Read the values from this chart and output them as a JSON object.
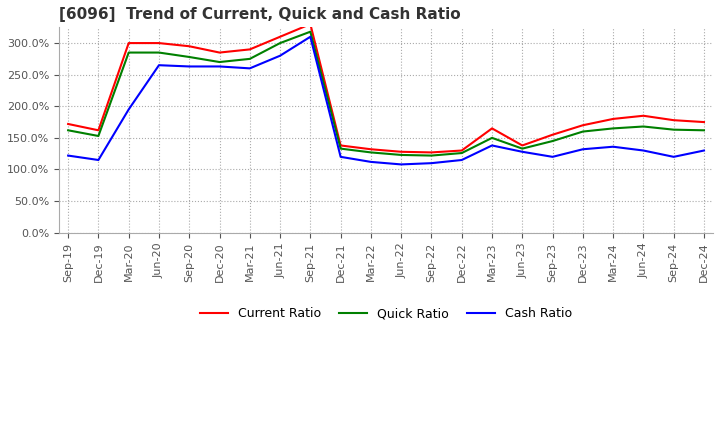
{
  "title": "[6096]  Trend of Current, Quick and Cash Ratio",
  "x_labels": [
    "Sep-19",
    "Dec-19",
    "Mar-20",
    "Jun-20",
    "Sep-20",
    "Dec-20",
    "Mar-21",
    "Jun-21",
    "Sep-21",
    "Dec-21",
    "Mar-22",
    "Jun-22",
    "Sep-22",
    "Dec-22",
    "Mar-23",
    "Jun-23",
    "Sep-23",
    "Dec-23",
    "Mar-24",
    "Jun-24",
    "Sep-24",
    "Dec-24"
  ],
  "current_ratio": [
    172,
    162,
    300,
    300,
    295,
    285,
    290,
    310,
    330,
    138,
    132,
    128,
    127,
    130,
    165,
    138,
    155,
    170,
    180,
    185,
    178,
    175
  ],
  "quick_ratio": [
    162,
    153,
    285,
    285,
    278,
    270,
    275,
    300,
    318,
    133,
    127,
    123,
    122,
    126,
    150,
    133,
    145,
    160,
    165,
    168,
    163,
    162
  ],
  "cash_ratio": [
    122,
    115,
    195,
    265,
    263,
    263,
    260,
    280,
    310,
    120,
    112,
    108,
    110,
    115,
    138,
    128,
    120,
    132,
    136,
    130,
    120,
    130
  ],
  "ylim": [
    0,
    325
  ],
  "yticks": [
    0,
    50,
    100,
    150,
    200,
    250,
    300
  ],
  "current_color": "#ff0000",
  "quick_color": "#008000",
  "cash_color": "#0000ff",
  "background_color": "#ffffff",
  "grid_color": "#aaaaaa",
  "title_fontsize": 11,
  "tick_fontsize": 8,
  "legend_fontsize": 9
}
